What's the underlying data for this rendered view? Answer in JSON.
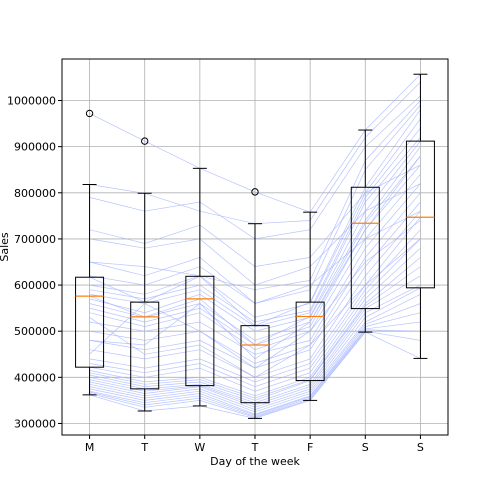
{
  "chart_data": {
    "type": "box",
    "title": "",
    "xlabel": "Day of the week",
    "ylabel": "Sales",
    "categories": [
      "M",
      "T",
      "W",
      "T",
      "F",
      "S",
      "S"
    ],
    "ylim": [
      275000,
      1090000
    ],
    "yticks": [
      300000,
      400000,
      500000,
      600000,
      700000,
      800000,
      900000,
      1000000
    ],
    "grid": true,
    "boxes": [
      {
        "whisker_low": 362000,
        "q1": 422000,
        "median": 576000,
        "q3": 617000,
        "whisker_high": 818000,
        "outliers": [
          972000
        ]
      },
      {
        "whisker_low": 327000,
        "q1": 375000,
        "median": 531000,
        "q3": 563000,
        "whisker_high": 799000,
        "outliers": [
          912000
        ]
      },
      {
        "whisker_low": 338000,
        "q1": 382000,
        "median": 570000,
        "q3": 619000,
        "whisker_high": 853000,
        "outliers": []
      },
      {
        "whisker_low": 311000,
        "q1": 345000,
        "median": 470000,
        "q3": 512000,
        "whisker_high": 733000,
        "outliers": [
          802000
        ]
      },
      {
        "whisker_low": 350000,
        "q1": 393000,
        "median": 532000,
        "q3": 563000,
        "whisker_high": 758000,
        "outliers": []
      },
      {
        "whisker_low": 498000,
        "q1": 549000,
        "median": 734000,
        "q3": 812000,
        "whisker_high": 936000,
        "outliers": []
      },
      {
        "whisker_low": 441000,
        "q1": 594000,
        "median": 747000,
        "q3": 912000,
        "whisker_high": 1057000,
        "outliers": []
      }
    ],
    "colors": {
      "box": "#000000",
      "median": "#ff7f0e",
      "lines": "#9fb0ff",
      "grid": "#b0b0b0"
    },
    "series_lines": [
      {
        "values": [
          972000,
          912000,
          853000,
          802000,
          758000,
          936000,
          1057000
        ]
      },
      {
        "values": [
          818000,
          799000,
          760000,
          733000,
          740000,
          920000,
          1040000
        ]
      },
      {
        "values": [
          790000,
          760000,
          780000,
          700000,
          720000,
          900000,
          1010000
        ]
      },
      {
        "values": [
          650000,
          640000,
          620000,
          590000,
          610000,
          870000,
          1000000
        ]
      },
      {
        "values": [
          620000,
          600000,
          640000,
          560000,
          590000,
          850000,
          990000
        ]
      },
      {
        "values": [
          617000,
          563000,
          619000,
          512000,
          563000,
          812000,
          980000
        ]
      },
      {
        "values": [
          600000,
          580000,
          620000,
          530000,
          560000,
          800000,
          960000
        ]
      },
      {
        "values": [
          590000,
          570000,
          600000,
          520000,
          545000,
          790000,
          940000
        ]
      },
      {
        "values": [
          580000,
          560000,
          590000,
          510000,
          540000,
          780000,
          920000
        ]
      },
      {
        "values": [
          576000,
          531000,
          570000,
          470000,
          532000,
          760000,
          912000
        ]
      },
      {
        "values": [
          570000,
          540000,
          580000,
          500000,
          530000,
          740000,
          900000
        ]
      },
      {
        "values": [
          560000,
          530000,
          560000,
          480000,
          520000,
          734000,
          880000
        ]
      },
      {
        "values": [
          550000,
          520000,
          550000,
          470000,
          510000,
          720000,
          860000
        ]
      },
      {
        "values": [
          540000,
          510000,
          540000,
          460000,
          500000,
          700000,
          840000
        ]
      },
      {
        "values": [
          520000,
          500000,
          520000,
          450000,
          480000,
          680000,
          820000
        ]
      },
      {
        "values": [
          500000,
          480000,
          500000,
          430000,
          470000,
          660000,
          800000
        ]
      },
      {
        "values": [
          480000,
          460000,
          480000,
          420000,
          460000,
          640000,
          780000
        ]
      },
      {
        "values": [
          460000,
          440000,
          460000,
          400000,
          440000,
          620000,
          760000
        ]
      },
      {
        "values": [
          440000,
          420000,
          440000,
          390000,
          430000,
          600000,
          747000
        ]
      },
      {
        "values": [
          430000,
          410000,
          430000,
          380000,
          420000,
          590000,
          720000
        ]
      },
      {
        "values": [
          422000,
          400000,
          420000,
          370000,
          410000,
          580000,
          700000
        ]
      },
      {
        "values": [
          415000,
          390000,
          400000,
          360000,
          400000,
          570000,
          680000
        ]
      },
      {
        "values": [
          410000,
          385000,
          395000,
          355000,
          395000,
          560000,
          660000
        ]
      },
      {
        "values": [
          405000,
          380000,
          390000,
          350000,
          393000,
          555000,
          640000
        ]
      },
      {
        "values": [
          400000,
          375000,
          385000,
          345000,
          385000,
          549000,
          620000
        ]
      },
      {
        "values": [
          395000,
          370000,
          382000,
          340000,
          380000,
          540000,
          600000
        ]
      },
      {
        "values": [
          390000,
          365000,
          380000,
          335000,
          375000,
          530000,
          594000
        ]
      },
      {
        "values": [
          385000,
          360000,
          375000,
          330000,
          370000,
          520000,
          580000
        ]
      },
      {
        "values": [
          380000,
          355000,
          370000,
          325000,
          365000,
          515000,
          560000
        ]
      },
      {
        "values": [
          375000,
          350000,
          365000,
          320000,
          360000,
          510000,
          540000
        ]
      },
      {
        "values": [
          370000,
          345000,
          360000,
          318000,
          358000,
          505000,
          520000
        ]
      },
      {
        "values": [
          368000,
          340000,
          355000,
          315000,
          355000,
          503000,
          500000
        ]
      },
      {
        "values": [
          365000,
          335000,
          350000,
          313000,
          352000,
          500000,
          480000
        ]
      },
      {
        "values": [
          362000,
          327000,
          338000,
          311000,
          350000,
          498000,
          441000
        ]
      },
      {
        "values": [
          700000,
          680000,
          700000,
          600000,
          640000,
          760000,
          820000
        ]
      },
      {
        "values": [
          720000,
          690000,
          730000,
          640000,
          660000,
          800000,
          860000
        ]
      },
      {
        "values": [
          650000,
          620000,
          660000,
          560000,
          600000,
          700000,
          760000
        ]
      },
      {
        "values": [
          480000,
          470000,
          560000,
          440000,
          520000,
          720000,
          880000
        ]
      },
      {
        "values": [
          450000,
          560000,
          500000,
          420000,
          500000,
          650000,
          740000
        ]
      },
      {
        "values": [
          530000,
          450000,
          470000,
          400000,
          470000,
          600000,
          700000
        ]
      }
    ]
  }
}
